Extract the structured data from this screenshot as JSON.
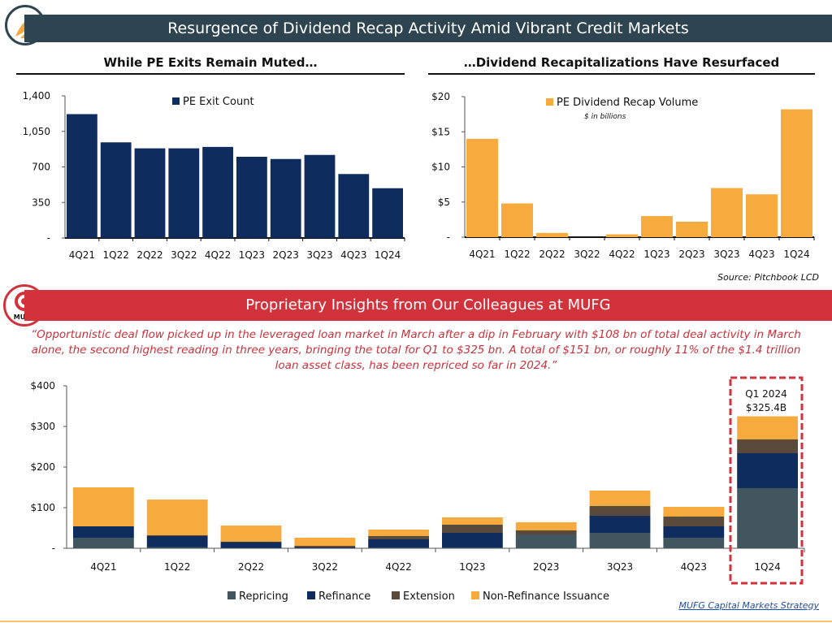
{
  "header": {
    "title": "Resurgence of Dividend Recap Activity Amid Vibrant Credit Markets"
  },
  "left_panel": {
    "subtitle": "While PE Exits Remain Muted…"
  },
  "right_panel": {
    "subtitle": "…Dividend Recapitalizations Have Resurfaced",
    "source": "Source: Pitchbook LCD"
  },
  "mufg": {
    "logo_text": "MUFG",
    "banner": "Proprietary Insights from Our Colleagues at MUFG",
    "quote": "“Opportunistic deal flow picked up in the leveraged loan market in March after a dip in February with $108 bn of total deal activity in March alone, the second highest reading in three years, bringing the total for Q1 to $325 bn. A total of $151 bn, or roughly 11% of the $1.4 trillion loan asset class, has been repriced so far in 2024.”"
  },
  "footer": {
    "link": "MUFG Capital Markets Strategy"
  },
  "colors": {
    "navy": "#0e2d5e",
    "orange": "#f7ab3e",
    "repricing": "#42565f",
    "extension": "#5a4a3b",
    "header": "#2e4551",
    "red": "#d2323b"
  },
  "chart_data": [
    {
      "type": "bar",
      "title": "",
      "categories": [
        "4Q21",
        "1Q22",
        "2Q22",
        "3Q22",
        "4Q22",
        "1Q23",
        "2Q23",
        "3Q23",
        "4Q23",
        "1Q24"
      ],
      "series": [
        {
          "name": "PE Exit Count",
          "values": [
            1220,
            942,
            883,
            883,
            897,
            800,
            778,
            818,
            630,
            490
          ]
        }
      ],
      "ylim": [
        0,
        1400
      ],
      "yticks": [
        "-",
        "350",
        "700",
        "1,050",
        "1,400"
      ],
      "legend": "top-center",
      "grid": false
    },
    {
      "type": "bar",
      "title": "",
      "categories": [
        "4Q21",
        "1Q22",
        "2Q22",
        "3Q22",
        "4Q22",
        "1Q23",
        "2Q23",
        "3Q23",
        "4Q23",
        "1Q24"
      ],
      "series": [
        {
          "name": "PE Dividend Recap Volume",
          "values": [
            14.0,
            4.8,
            0.6,
            0,
            0.4,
            3.0,
            2.2,
            7.0,
            6.1,
            18.2
          ]
        }
      ],
      "annotation": "$ in billions",
      "ylim": [
        0,
        20
      ],
      "yticks": [
        "-",
        "$5",
        "$10",
        "$15",
        "$20"
      ],
      "legend": "top-center",
      "grid": false
    },
    {
      "type": "bar",
      "stacked": true,
      "title": "",
      "categories": [
        "4Q21",
        "1Q22",
        "2Q22",
        "3Q22",
        "4Q22",
        "1Q23",
        "2Q23",
        "3Q23",
        "4Q23",
        "1Q24"
      ],
      "series": [
        {
          "name": "Repricing",
          "values": [
            26,
            3,
            1,
            0,
            2,
            2,
            34,
            38,
            26,
            148
          ]
        },
        {
          "name": "Refinance",
          "values": [
            28,
            27,
            14,
            2,
            20,
            36,
            0,
            42,
            28,
            86
          ]
        },
        {
          "name": "Extension",
          "values": [
            0,
            2,
            1,
            4,
            8,
            20,
            10,
            24,
            24,
            34
          ]
        },
        {
          "name": "Non-Refinance Issuance",
          "values": [
            96,
            88,
            40,
            20,
            16,
            18,
            20,
            38,
            24,
            57
          ]
        }
      ],
      "ylim": [
        0,
        400
      ],
      "yticks": [
        "-",
        "$100",
        "$200",
        "$300",
        "$400"
      ],
      "legend": "bottom",
      "highlight": {
        "category": "1Q24",
        "label_line1": "Q1 2024",
        "label_line2": "$325.4B"
      }
    }
  ]
}
